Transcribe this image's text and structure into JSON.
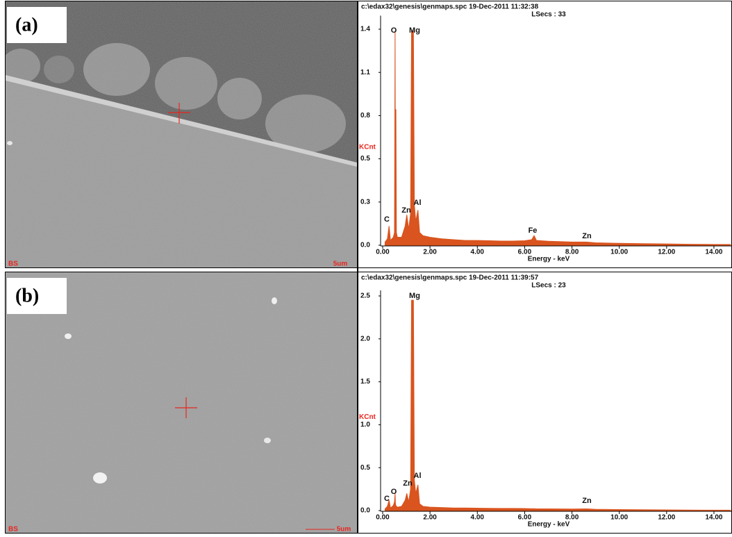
{
  "images": [
    {
      "label": "(a)",
      "detector": "BS",
      "scale_bar": "5um"
    },
    {
      "label": "(b)",
      "detector": "BS",
      "scale_bar": "5um"
    }
  ],
  "chart_data": [
    {
      "type": "area",
      "title": "c:\\edax32\\genesis\\genmaps.spc  19-Dec-2011 11:32:38",
      "subtitle": "LSecs : 33",
      "x_label": "Energy - keV",
      "y_label": "KCnt",
      "color": "#d9541e",
      "x": [
        0.1,
        0.2,
        0.27,
        0.33,
        0.45,
        0.5,
        0.525,
        0.54,
        0.56,
        0.58,
        0.62,
        0.8,
        0.95,
        1.02,
        1.1,
        1.18,
        1.22,
        1.3,
        1.34,
        1.4,
        1.49,
        1.56,
        1.7,
        2.0,
        2.5,
        3.0,
        3.5,
        4.0,
        4.5,
        5.0,
        5.5,
        6.0,
        6.3,
        6.4,
        6.5,
        7.0,
        8.0,
        8.6,
        9.0,
        10.0,
        11.0,
        12.0,
        13.0,
        14.0,
        14.7
      ],
      "values": [
        0.02,
        0.04,
        0.12,
        0.03,
        0.05,
        0.08,
        1.34,
        0.15,
        0.85,
        0.08,
        0.05,
        0.05,
        0.12,
        0.19,
        0.1,
        0.2,
        1.34,
        1.34,
        0.25,
        0.15,
        0.22,
        0.08,
        0.06,
        0.05,
        0.04,
        0.035,
        0.03,
        0.03,
        0.028,
        0.026,
        0.026,
        0.028,
        0.035,
        0.06,
        0.03,
        0.025,
        0.02,
        0.02,
        0.015,
        0.012,
        0.01,
        0.008,
        0.006,
        0.005,
        0.005
      ],
      "xlim": [
        0,
        14.76
      ],
      "ylim": [
        0,
        1.4
      ],
      "xticks": [
        {
          "value": 0,
          "label": "0.00"
        },
        {
          "value": 2,
          "label": "2.00"
        },
        {
          "value": 4,
          "label": "4.00"
        },
        {
          "value": 6,
          "label": "6.00"
        },
        {
          "value": 8,
          "label": "8.00"
        },
        {
          "value": 10,
          "label": "10.00"
        },
        {
          "value": 12,
          "label": "12.00"
        },
        {
          "value": 14,
          "label": "14.00"
        }
      ],
      "yticks": [
        {
          "value": 0,
          "label": "0.0"
        },
        {
          "value": 0.27,
          "label": "0.3"
        },
        {
          "value": 0.54,
          "label": "0.5"
        },
        {
          "value": 0.81,
          "label": "0.8"
        },
        {
          "value": 1.08,
          "label": "1.1"
        },
        {
          "value": 1.35,
          "label": "1.4"
        }
      ],
      "annotations": [
        "C",
        "O",
        "Mg",
        "Zn",
        "Al",
        "Fe",
        "Zn"
      ]
    },
    {
      "type": "area",
      "title": "c:\\edax32\\genesis\\genmaps.spc  19-Dec-2011 11:39:57",
      "subtitle": "LSecs : 23",
      "x_label": "Energy - keV",
      "y_label": "KCnt",
      "color": "#d9541e",
      "x": [
        0.1,
        0.2,
        0.27,
        0.33,
        0.45,
        0.5,
        0.525,
        0.54,
        0.56,
        0.58,
        0.62,
        0.8,
        0.95,
        1.02,
        1.1,
        1.18,
        1.22,
        1.3,
        1.34,
        1.4,
        1.49,
        1.56,
        1.7,
        2.0,
        2.5,
        3.0,
        3.5,
        4.0,
        4.5,
        5.0,
        5.5,
        6.0,
        6.3,
        6.4,
        6.5,
        7.0,
        8.0,
        8.6,
        9.0,
        10.0,
        11.0,
        12.0,
        13.0,
        14.0,
        14.7
      ],
      "values": [
        0.02,
        0.05,
        0.12,
        0.03,
        0.06,
        0.1,
        0.2,
        0.08,
        0.06,
        0.05,
        0.04,
        0.05,
        0.12,
        0.2,
        0.1,
        0.25,
        2.45,
        2.45,
        0.35,
        0.2,
        0.3,
        0.08,
        0.05,
        0.04,
        0.035,
        0.03,
        0.03,
        0.028,
        0.026,
        0.025,
        0.025,
        0.024,
        0.022,
        0.022,
        0.02,
        0.02,
        0.018,
        0.02,
        0.015,
        0.012,
        0.01,
        0.008,
        0.006,
        0.005,
        0.005
      ],
      "xlim": [
        0,
        14.76
      ],
      "ylim": [
        0,
        2.5
      ],
      "xticks": [
        {
          "value": 0,
          "label": "0.00"
        },
        {
          "value": 2,
          "label": "2.00"
        },
        {
          "value": 4,
          "label": "4.00"
        },
        {
          "value": 6,
          "label": "6.00"
        },
        {
          "value": 8,
          "label": "8.00"
        },
        {
          "value": 10,
          "label": "10.00"
        },
        {
          "value": 12,
          "label": "12.00"
        },
        {
          "value": 14,
          "label": "14.00"
        }
      ],
      "yticks": [
        {
          "value": 0,
          "label": "0.0"
        },
        {
          "value": 0.5,
          "label": "0.5"
        },
        {
          "value": 1,
          "label": "1.0"
        },
        {
          "value": 1.5,
          "label": "1.5"
        },
        {
          "value": 2,
          "label": "2.0"
        },
        {
          "value": 2.5,
          "label": "2.5"
        }
      ],
      "annotations": [
        "Mg",
        "O",
        "C",
        "Zn",
        "Al",
        "Zn"
      ]
    }
  ]
}
